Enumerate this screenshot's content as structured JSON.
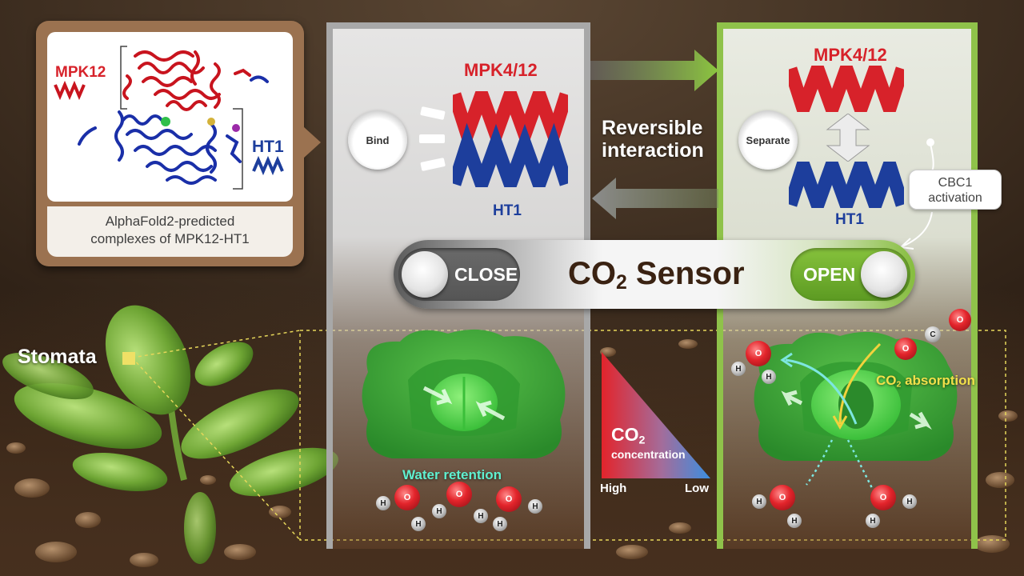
{
  "alphafold": {
    "mpk12_label": "MPK12",
    "ht1_label": "HT1",
    "caption_line1": "AlphaFold2-predicted",
    "caption_line2": "complexes of MPK12-HT1"
  },
  "left_panel": {
    "title": "MPK4/12",
    "bottom_label": "HT1",
    "state_label": "Bind"
  },
  "right_panel": {
    "title": "MPK4/12",
    "bottom_label": "HT1",
    "state_label": "Separate"
  },
  "interaction": {
    "line1": "Reversible",
    "line2": "interaction"
  },
  "cbc1": {
    "line1": "CBC1",
    "line2": "activation"
  },
  "sensor": {
    "close_label": "CLOSE",
    "open_label": "OPEN",
    "title_prefix": "CO",
    "title_sub": "2",
    "title_suffix": " Sensor"
  },
  "stomata_label": "Stomata",
  "water_retention_label": "Water retention",
  "co2_absorption": {
    "prefix": "CO",
    "sub": "2",
    "suffix": " absorption"
  },
  "gradient": {
    "co2_prefix": "CO",
    "co2_sub": "2",
    "concentration": "concentration",
    "high": "High",
    "low": "Low"
  },
  "atoms": {
    "oxygen": "O",
    "hydrogen": "H",
    "carbon": "C"
  },
  "colors": {
    "mpk_red": "#d7222a",
    "ht1_blue": "#1d3e9c",
    "open_green": "#7ab536",
    "card_brown": "#9b7250",
    "stoma_green": "#3aa335"
  }
}
